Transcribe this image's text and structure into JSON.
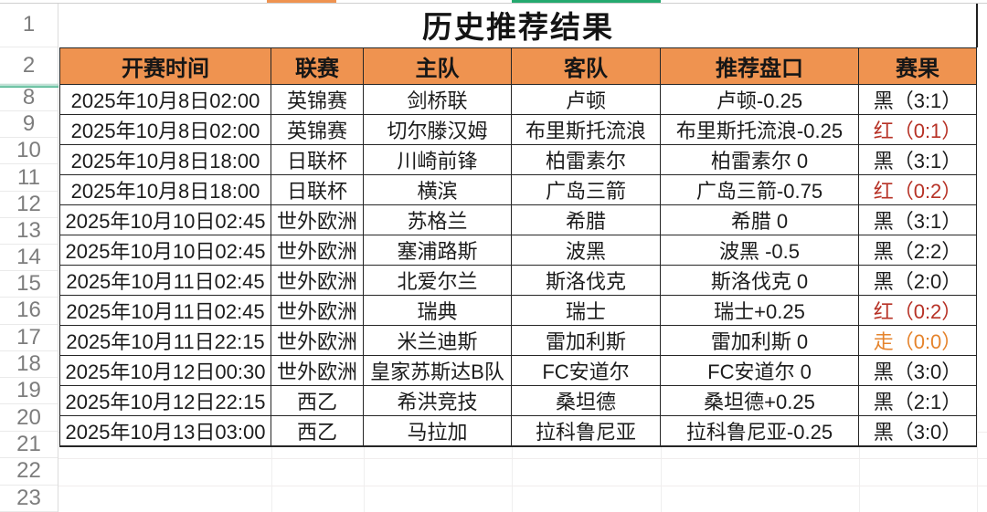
{
  "title": "历史推荐结果",
  "columns": [
    "开赛时间",
    "联赛",
    "主队",
    "客队",
    "推荐盘口",
    "赛果"
  ],
  "row_numbers": {
    "title_row": "1",
    "header_row": "2",
    "data_rows": [
      "8",
      "9",
      "10",
      "11",
      "12",
      "13",
      "14",
      "15",
      "16",
      "17",
      "18",
      "19"
    ],
    "empty_rows": [
      "20",
      "21",
      "22",
      "23"
    ]
  },
  "matches": [
    {
      "row": "8",
      "kickoff": "2025年10月8日02:00",
      "league": "英锦赛",
      "home": "剑桥联",
      "away": "卢顿",
      "handicap": "卢顿-0.25",
      "result": "黑（3:1）",
      "result_state": "black"
    },
    {
      "row": "9",
      "kickoff": "2025年10月8日02:00",
      "league": "英锦赛",
      "home": "切尔滕汉姆",
      "away": "布里斯托流浪",
      "handicap": "布里斯托流浪-0.25",
      "result": "红（0:1）",
      "result_state": "red"
    },
    {
      "row": "10",
      "kickoff": "2025年10月8日18:00",
      "league": "日联杯",
      "home": "川崎前锋",
      "away": "柏雷素尔",
      "handicap": "柏雷素尔 0",
      "result": "黑（3:1）",
      "result_state": "black"
    },
    {
      "row": "11",
      "kickoff": "2025年10月8日18:00",
      "league": "日联杯",
      "home": "横滨",
      "away": "广岛三箭",
      "handicap": "广岛三箭-0.75",
      "result": "红（0:2）",
      "result_state": "red"
    },
    {
      "row": "12",
      "kickoff": "2025年10月10日02:45",
      "league": "世外欧洲",
      "home": "苏格兰",
      "away": "希腊",
      "handicap": "希腊 0",
      "result": "黑（3:1）",
      "result_state": "black"
    },
    {
      "row": "13",
      "kickoff": "2025年10月10日02:45",
      "league": "世外欧洲",
      "home": "塞浦路斯",
      "away": "波黑",
      "handicap": "波黑 -0.5",
      "result": "黑（2:2）",
      "result_state": "black"
    },
    {
      "row": "14",
      "kickoff": "2025年10月11日02:45",
      "league": "世外欧洲",
      "home": "北爱尔兰",
      "away": "斯洛伐克",
      "handicap": "斯洛伐克 0",
      "result": "黑（2:0）",
      "result_state": "black"
    },
    {
      "row": "15",
      "kickoff": "2025年10月11日02:45",
      "league": "世外欧洲",
      "home": "瑞典",
      "away": "瑞士",
      "handicap": "瑞士+0.25",
      "result": "红（0:2）",
      "result_state": "red"
    },
    {
      "row": "16",
      "kickoff": "2025年10月11日22:15",
      "league": "世外欧洲",
      "home": "米兰迪斯",
      "away": "雷加利斯",
      "handicap": "雷加利斯 0",
      "result": "走（0:0）",
      "result_state": "push"
    },
    {
      "row": "17",
      "kickoff": "2025年10月12日00:30",
      "league": "世外欧洲",
      "home": "皇家苏斯达B队",
      "away": "FC安道尔",
      "handicap": "FC安道尔 0",
      "result": "黑（3:0）",
      "result_state": "black"
    },
    {
      "row": "18",
      "kickoff": "2025年10月12日22:15",
      "league": "西乙",
      "home": "希洪竞技",
      "away": "桑坦德",
      "handicap": "桑坦德+0.25",
      "result": "黑（2:1）",
      "result_state": "black"
    },
    {
      "row": "19",
      "kickoff": "2025年10月13日03:00",
      "league": "西乙",
      "home": "马拉加",
      "away": "拉科鲁尼亚",
      "handicap": "拉科鲁尼亚-0.25",
      "result": "黑（3:0）",
      "result_state": "black"
    }
  ],
  "colors": {
    "header_bg": "#EF9350",
    "result_black": "#1C1C1C",
    "result_red": "#B73226",
    "result_push": "#E5832C",
    "top_strip_orange": "#EF9350",
    "top_strip_green": "#25A96F",
    "hidden_rows_indicator_teal": "#2FA87C"
  }
}
